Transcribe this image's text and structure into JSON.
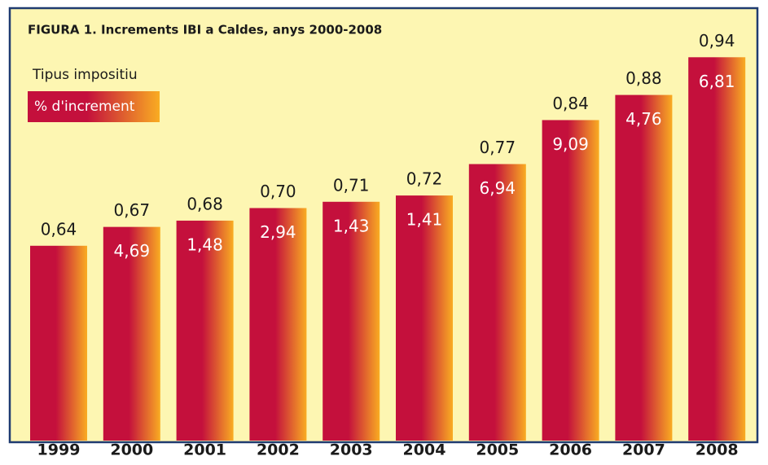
{
  "chart_data": {
    "type": "bar",
    "title": "FIGURA 1. Increments IBI a Caldes, anys 2000-2008",
    "categories": [
      "1999",
      "2000",
      "2001",
      "2002",
      "2003",
      "2004",
      "2005",
      "2006",
      "2007",
      "2008"
    ],
    "series": [
      {
        "name": "Tipus impositiu",
        "color": "#c4103c",
        "gradient_to": "#f9ac22",
        "values": [
          0.64,
          0.67,
          0.68,
          0.7,
          0.71,
          0.72,
          0.77,
          0.84,
          0.88,
          0.94
        ],
        "value_labels": [
          "0,64",
          "0,67",
          "0,68",
          "0,70",
          "0,71",
          "0,72",
          "0,77",
          "0,84",
          "0,88",
          "0,94"
        ]
      },
      {
        "name": "% d'increment",
        "color": "#c4103c",
        "gradient_to": "#f9ac22",
        "values": [
          null,
          4.69,
          1.48,
          2.94,
          1.43,
          1.41,
          6.94,
          9.09,
          4.76,
          6.81
        ],
        "value_labels": [
          null,
          "4,69",
          "1,48",
          "2,94",
          "1,43",
          "1,41",
          "6,94",
          "9,09",
          "4,76",
          "6,81"
        ]
      }
    ],
    "ylim": [
      0.33,
      1.0
    ]
  }
}
